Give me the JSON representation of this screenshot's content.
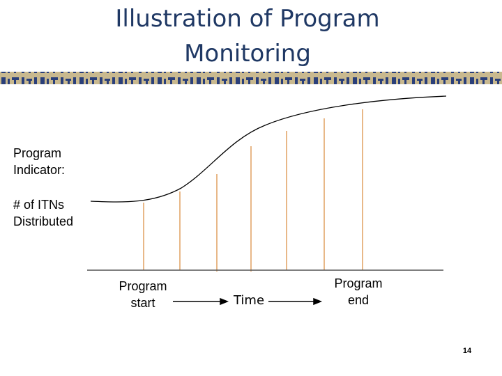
{
  "title": "Illustration of Program Monitoring",
  "y_label": "Program Indicator:",
  "y_sublabel": "# of ITNs Distributed",
  "x_start": "Program start",
  "x_middle": "Time",
  "x_end": "Program end",
  "page_number": "14"
}
